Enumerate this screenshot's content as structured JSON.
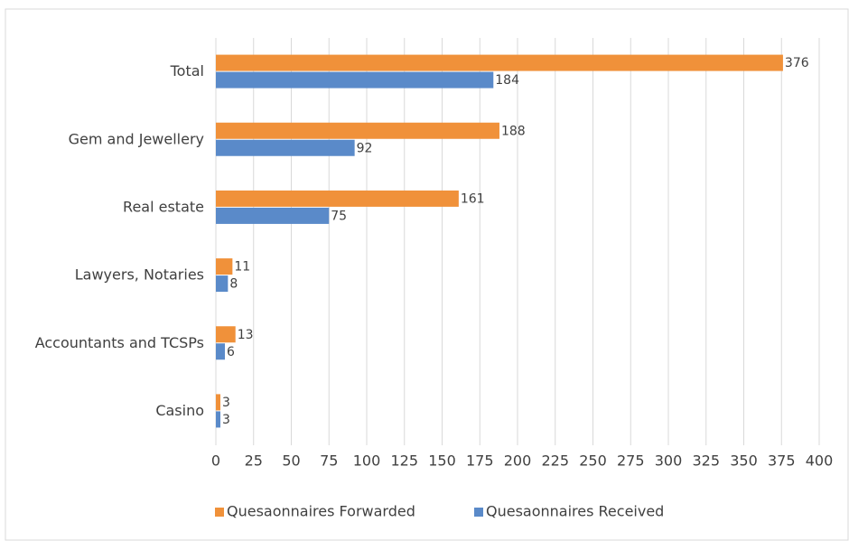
{
  "chart_data": {
    "type": "barh",
    "categories": [
      "Total",
      "Gem and Jewellery",
      "Real estate",
      "Lawyers, Notaries",
      "Accountants and TCSPs",
      "Casino"
    ],
    "series": [
      {
        "name": "Quesaonnaires Forwarded",
        "color": "#f0913a",
        "values": [
          376,
          188,
          161,
          11,
          13,
          3
        ]
      },
      {
        "name": "Quesaonnaires Received",
        "color": "#5a8ac9",
        "values": [
          184,
          92,
          75,
          8,
          6,
          3
        ]
      }
    ],
    "xlim": [
      0,
      400
    ],
    "xticks": [
      0,
      25,
      50,
      75,
      100,
      125,
      150,
      175,
      200,
      225,
      250,
      275,
      300,
      325,
      350,
      375,
      400
    ],
    "grid": true,
    "legend": "bottom"
  }
}
